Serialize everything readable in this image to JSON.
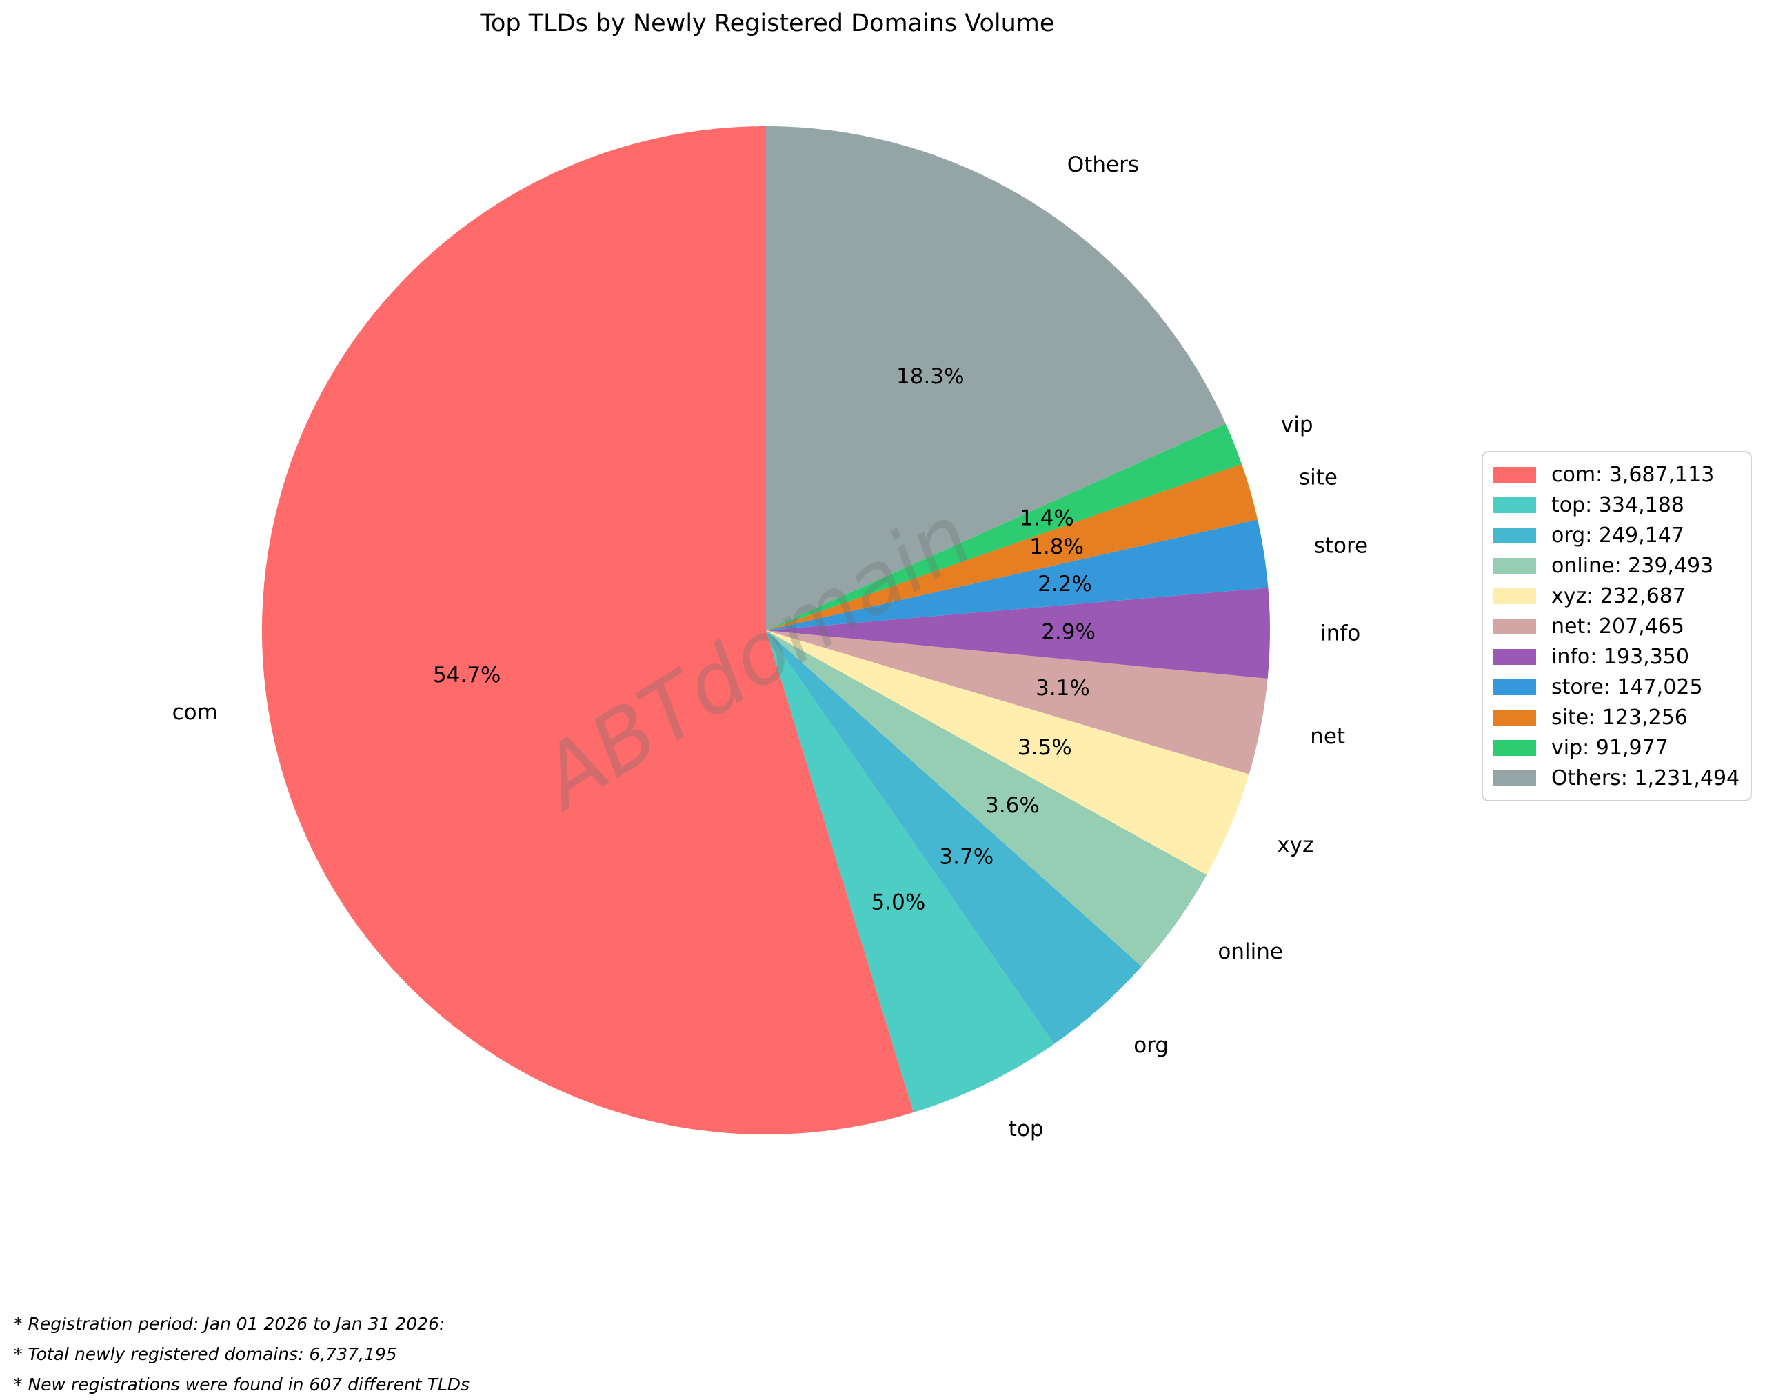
{
  "title": "Top TLDs by Newly Registered Domains Volume",
  "watermark": "ABTdomain",
  "footnotes": [
    "* Registration period: Jan 01 2026 to Jan 31 2026:",
    "* Total newly registered domains: 6,737,195",
    "* New registrations were found in 607 different TLDs"
  ],
  "chart_data": {
    "type": "pie",
    "title": "Top TLDs by Newly Registered Domains Volume",
    "total": 6737195,
    "start_angle": 90,
    "direction": "counterclockwise",
    "legend_position": "right",
    "slices": [
      {
        "label": "com",
        "value": 3687113,
        "pct": "54.7%",
        "legend": "com: 3,687,113",
        "color": "#FF6B6B"
      },
      {
        "label": "top",
        "value": 334188,
        "pct": "5.0%",
        "legend": "top: 334,188",
        "color": "#4ECDC4"
      },
      {
        "label": "org",
        "value": 249147,
        "pct": "3.7%",
        "legend": "org: 249,147",
        "color": "#45B7D1"
      },
      {
        "label": "online",
        "value": 239493,
        "pct": "3.6%",
        "legend": "online: 239,493",
        "color": "#96CEB4"
      },
      {
        "label": "xyz",
        "value": 232687,
        "pct": "3.5%",
        "legend": "xyz: 232,687",
        "color": "#FFEEAD"
      },
      {
        "label": "net",
        "value": 207465,
        "pct": "3.1%",
        "legend": "net: 207,465",
        "color": "#D4A5A5"
      },
      {
        "label": "info",
        "value": 193350,
        "pct": "2.9%",
        "legend": "info: 193,350",
        "color": "#9B59B6"
      },
      {
        "label": "store",
        "value": 147025,
        "pct": "2.2%",
        "legend": "store: 147,025",
        "color": "#3498DB"
      },
      {
        "label": "site",
        "value": 123256,
        "pct": "1.8%",
        "legend": "site: 123,256",
        "color": "#E67E22"
      },
      {
        "label": "vip",
        "value": 91977,
        "pct": "1.4%",
        "legend": "vip: 91,977",
        "color": "#2ECC71"
      },
      {
        "label": "Others",
        "value": 1231494,
        "pct": "18.3%",
        "legend": "Others: 1,231,494",
        "color": "#95A5A6"
      }
    ]
  }
}
